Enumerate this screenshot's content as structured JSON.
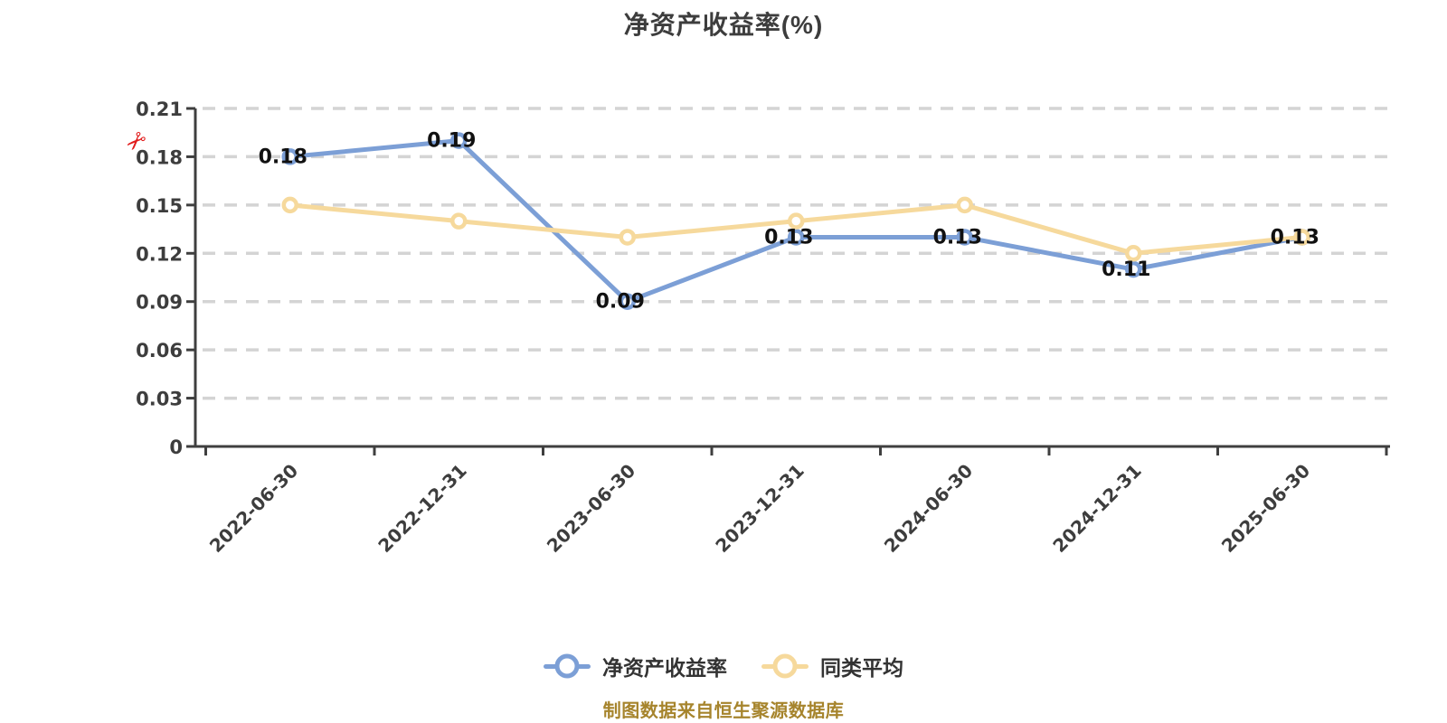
{
  "title": {
    "text": "净资产收益率(%)"
  },
  "annotation": {
    "scissors_icon": "✂",
    "color": "#e11b1b"
  },
  "chart_data": {
    "type": "line",
    "title": "净资产收益率(%)",
    "categories": [
      "2022-06-30",
      "2022-12-31",
      "2023-06-30",
      "2023-12-31",
      "2024-06-30",
      "2024-12-31",
      "2025-06-30"
    ],
    "series": [
      {
        "name": "净资产收益率",
        "color": "#7c9fd6",
        "values": [
          0.18,
          0.19,
          0.09,
          0.13,
          0.13,
          0.11,
          0.13
        ],
        "point_labels": [
          "0.18",
          "0.19",
          "0.09",
          "0.13",
          "0.13",
          "0.11",
          "0.13"
        ]
      },
      {
        "name": "同类平均",
        "color": "#f6d99c",
        "values": [
          0.15,
          0.14,
          0.13,
          0.14,
          0.15,
          0.12,
          0.13
        ],
        "point_labels": []
      }
    ],
    "ylim": [
      0,
      0.21
    ],
    "ytick_step": 0.03,
    "yticks": [
      "0",
      "0.03",
      "0.06",
      "0.09",
      "0.12",
      "0.15",
      "0.18",
      "0.21"
    ],
    "grid": "horizontal-dashed",
    "grid_color": "#d4d4d4",
    "axis_color": "#3f3f3f",
    "tick_label_color": "#3d3d3d",
    "point_label_color": "#111111",
    "legend_position": "bottom"
  },
  "legend": {
    "items": [
      {
        "label": "净资产收益率",
        "color": "#7c9fd6"
      },
      {
        "label": "同类平均",
        "color": "#f6d99c"
      }
    ]
  },
  "footer": {
    "text": "制图数据来自恒生聚源数据库",
    "color": "#a6842c"
  }
}
